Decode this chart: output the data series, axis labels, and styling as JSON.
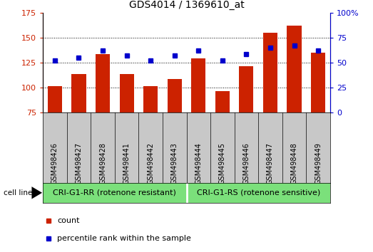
{
  "title": "GDS4014 / 1369610_at",
  "samples": [
    "GSM498426",
    "GSM498427",
    "GSM498428",
    "GSM498441",
    "GSM498442",
    "GSM498443",
    "GSM498444",
    "GSM498445",
    "GSM498446",
    "GSM498447",
    "GSM498448",
    "GSM498449"
  ],
  "count_values": [
    101,
    113,
    133,
    113,
    101,
    108,
    129,
    96,
    121,
    155,
    162,
    135
  ],
  "percentile_values": [
    52,
    55,
    62,
    57,
    52,
    57,
    62,
    52,
    58,
    65,
    67,
    62
  ],
  "bar_color": "#cc2200",
  "dot_color": "#0000cc",
  "ylim_left": [
    75,
    175
  ],
  "ylim_right": [
    0,
    100
  ],
  "yticks_left": [
    75,
    100,
    125,
    150,
    175
  ],
  "yticks_right": [
    0,
    25,
    50,
    75,
    100
  ],
  "ytick_labels_right": [
    "0",
    "25",
    "50",
    "75",
    "100%"
  ],
  "group1_label": "CRI-G1-RR (rotenone resistant)",
  "group2_label": "CRI-G1-RS (rotenone sensitive)",
  "group1_count": 6,
  "group2_count": 6,
  "cell_line_label": "cell line",
  "legend_count_label": "count",
  "legend_percentile_label": "percentile rank within the sample",
  "bg_color": "#ffffff",
  "plot_bg_color": "#ffffff",
  "tick_area_bg": "#c8c8c8",
  "group_bg": "#7be07b",
  "grid_color": "#000000",
  "title_fontsize": 10,
  "tick_fontsize": 8,
  "label_fontsize": 7,
  "group_fontsize": 8,
  "legend_fontsize": 8
}
